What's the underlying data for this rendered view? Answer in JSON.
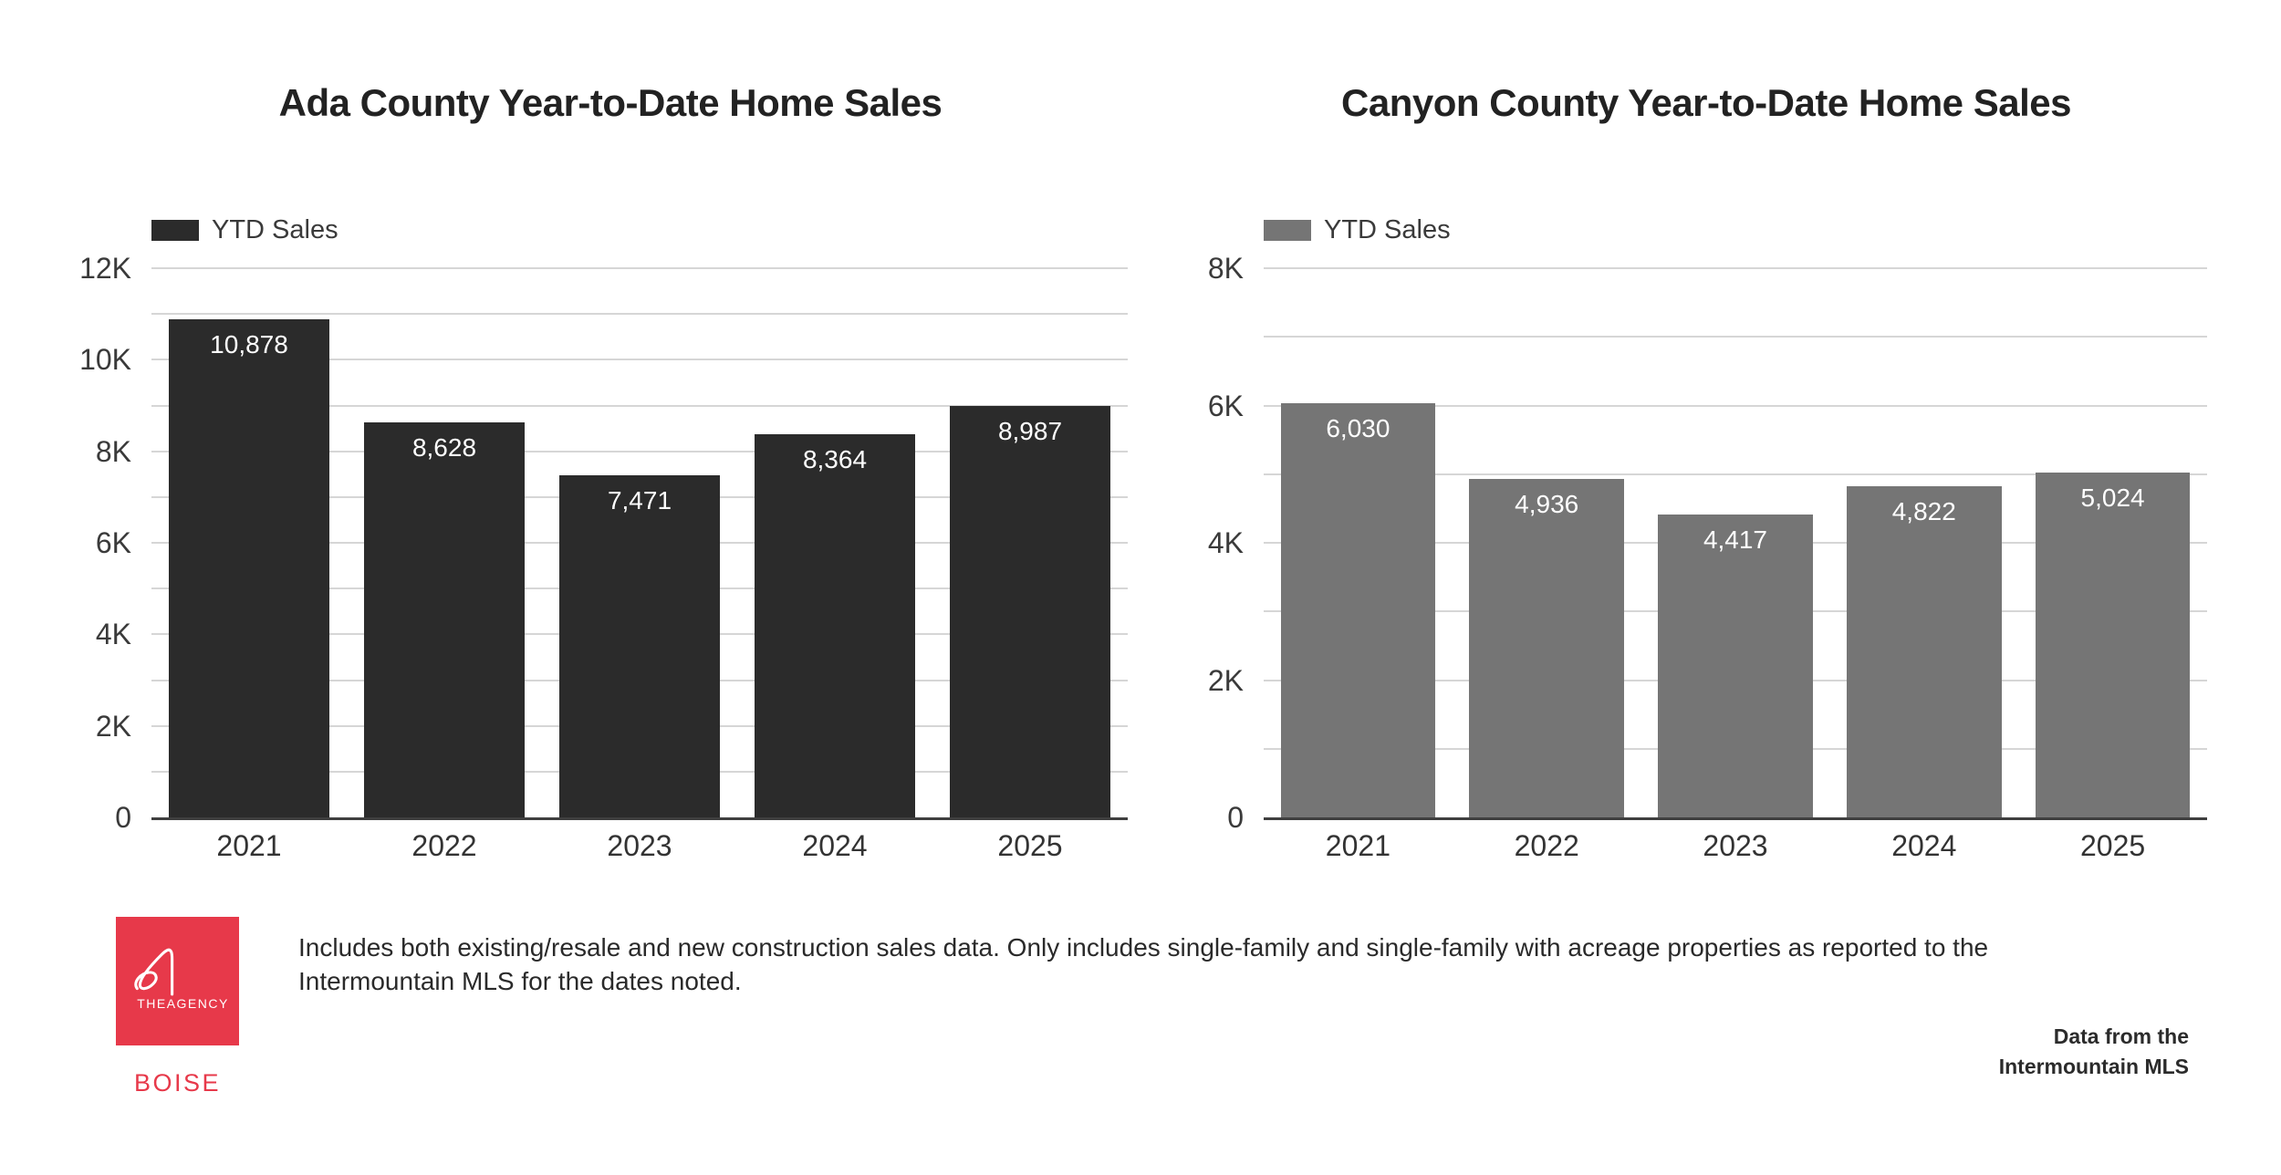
{
  "page": {
    "background": "#ffffff"
  },
  "chart_data": [
    {
      "type": "bar",
      "title": "Ada County Year-to-Date Home Sales",
      "legend": [
        "YTD Sales"
      ],
      "legend_position": "top-left",
      "series_color": "#2b2b2b",
      "categories": [
        "2021",
        "2022",
        "2023",
        "2024",
        "2025"
      ],
      "values": [
        10878,
        8628,
        7471,
        8364,
        8987
      ],
      "value_labels": [
        "10,878",
        "8,628",
        "7,471",
        "8,364",
        "8,987"
      ],
      "xlabel": "",
      "ylabel": "",
      "ylim": [
        0,
        12000
      ],
      "gridline_step": 1000,
      "grid": true,
      "yticks": [
        {
          "value": 0,
          "label": "0"
        },
        {
          "value": 2000,
          "label": "2K"
        },
        {
          "value": 4000,
          "label": "4K"
        },
        {
          "value": 6000,
          "label": "6K"
        },
        {
          "value": 8000,
          "label": "8K"
        },
        {
          "value": 10000,
          "label": "10K"
        },
        {
          "value": 12000,
          "label": "12K"
        }
      ]
    },
    {
      "type": "bar",
      "title": "Canyon County Year-to-Date Home Sales",
      "legend": [
        "YTD Sales"
      ],
      "legend_position": "top-left",
      "series_color": "#757575",
      "categories": [
        "2021",
        "2022",
        "2023",
        "2024",
        "2025"
      ],
      "values": [
        6030,
        4936,
        4417,
        4822,
        5024
      ],
      "value_labels": [
        "6,030",
        "4,936",
        "4,417",
        "4,822",
        "5,024"
      ],
      "xlabel": "",
      "ylabel": "",
      "ylim": [
        0,
        8000
      ],
      "gridline_step": 1000,
      "grid": true,
      "yticks": [
        {
          "value": 0,
          "label": "0"
        },
        {
          "value": 2000,
          "label": "2K"
        },
        {
          "value": 4000,
          "label": "4K"
        },
        {
          "value": 6000,
          "label": "6K"
        },
        {
          "value": 8000,
          "label": "8K"
        }
      ]
    }
  ],
  "footer": {
    "logo": {
      "brand": "THEAGENCY",
      "office": "BOISE",
      "accent_color": "#e7394a"
    },
    "disclaimer_lines": [
      "Includes both existing/resale and new construction sales data. Only includes single-family and single-family with acreage properties as reported to the",
      "Intermountain MLS for the dates noted."
    ],
    "source_lines": [
      "Data from the",
      "Intermountain MLS"
    ]
  }
}
